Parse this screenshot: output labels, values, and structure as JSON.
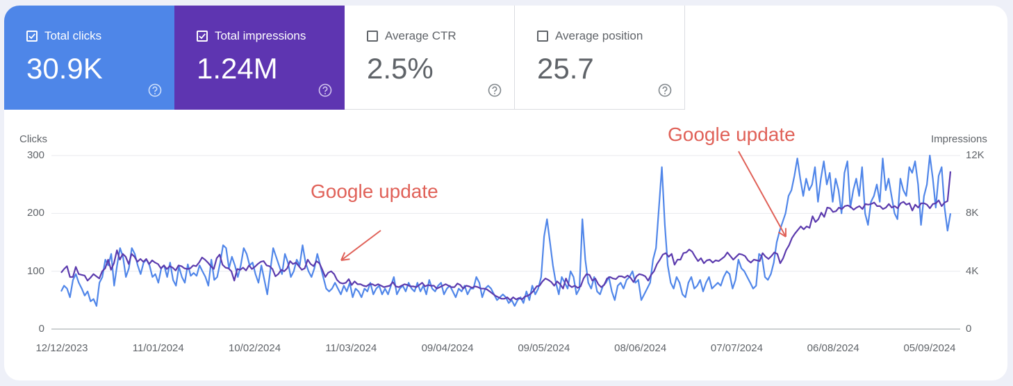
{
  "metrics": [
    {
      "label": "Total clicks",
      "value": "30.9K",
      "checked": true,
      "color": "#4e86e8"
    },
    {
      "label": "Total impressions",
      "value": "1.24M",
      "checked": true,
      "color": "#5e35b1"
    },
    {
      "label": "Average CTR",
      "value": "2.5%",
      "checked": false,
      "color": "#ffffff"
    },
    {
      "label": "Average position",
      "value": "25.7",
      "checked": false,
      "color": "#ffffff"
    }
  ],
  "icons": {
    "checkbox_checked": "check-icon",
    "help": "help-circle-icon",
    "arrow": "arrow-icon"
  },
  "annotations": [
    {
      "text": "Google update"
    },
    {
      "text": "Google update"
    }
  ],
  "chart_data": {
    "type": "line",
    "left_axis_title": "Clicks",
    "right_axis_title": "Impressions",
    "left_ticks": [
      "0",
      "100",
      "200",
      "300"
    ],
    "right_ticks": [
      "0",
      "4K",
      "8K",
      "12K"
    ],
    "ylim_left": [
      0,
      300
    ],
    "ylim_right": [
      0,
      12000
    ],
    "x_tick_labels": [
      "12/12/2023",
      "11/01/2024",
      "10/02/2024",
      "11/03/2024",
      "09/04/2024",
      "09/05/2024",
      "08/06/2024",
      "07/07/2024",
      "06/08/2024",
      "05/09/2024"
    ],
    "grid": true,
    "series": [
      {
        "name": "Total clicks",
        "axis": "left",
        "color": "#5086e9",
        "values": [
          65,
          75,
          70,
          55,
          85,
          95,
          80,
          70,
          58,
          65,
          48,
          52,
          40,
          80,
          90,
          120,
          110,
          130,
          75,
          110,
          140,
          125,
          90,
          105,
          140,
          130,
          110,
          95,
          115,
          120,
          110,
          90,
          95,
          80,
          105,
          110,
          90,
          115,
          85,
          75,
          108,
          90,
          80,
          112,
          92,
          97,
          92,
          110,
          100,
          90,
          75,
          120,
          85,
          90,
          115,
          145,
          140,
          105,
          125,
          110,
          90,
          110,
          140,
          130,
          110,
          115,
          95,
          80,
          110,
          85,
          60,
          100,
          140,
          125,
          110,
          95,
          130,
          115,
          90,
          100,
          120,
          110,
          145,
          115,
          100,
          90,
          105,
          130,
          110,
          90,
          70,
          65,
          70,
          80,
          70,
          60,
          75,
          65,
          80,
          55,
          70,
          65,
          55,
          70,
          65,
          80,
          60,
          70,
          75,
          60,
          70,
          60,
          75,
          90,
          60,
          70,
          75,
          65,
          80,
          70,
          65,
          80,
          65,
          75,
          60,
          85,
          70,
          65,
          75,
          80,
          60,
          70,
          75,
          65,
          55,
          70,
          65,
          75,
          60,
          70,
          70,
          90,
          80,
          55,
          70,
          75,
          70,
          60,
          50,
          55,
          60,
          55,
          45,
          50,
          40,
          50,
          55,
          45,
          65,
          50,
          75,
          60,
          70,
          90,
          160,
          190,
          150,
          110,
          80,
          60,
          90,
          80,
          70,
          100,
          90,
          60,
          70,
          190,
          120,
          80,
          70,
          90,
          65,
          60,
          75,
          80,
          90,
          65,
          50,
          75,
          80,
          70,
          85,
          90,
          100,
          80,
          85,
          50,
          60,
          70,
          80,
          120,
          140,
          210,
          280,
          180,
          110,
          80,
          70,
          90,
          80,
          60,
          55,
          80,
          90,
          70,
          75,
          85,
          65,
          80,
          90,
          70,
          75,
          80,
          75,
          90,
          100,
          95,
          70,
          85,
          120,
          105,
          100,
          90,
          80,
          70,
          75,
          130,
          125,
          90,
          85,
          95,
          115,
          150,
          170,
          185,
          200,
          230,
          240,
          265,
          295,
          260,
          230,
          260,
          240,
          250,
          280,
          220,
          260,
          290,
          250,
          270,
          220,
          260,
          240,
          200,
          270,
          290,
          210,
          240,
          260,
          230,
          280,
          200,
          180,
          220,
          230,
          250,
          220,
          295,
          240,
          260,
          230,
          200,
          190,
          260,
          240,
          230,
          280,
          270,
          290,
          250,
          180,
          230,
          250,
          300,
          260,
          210,
          265,
          280,
          210,
          170,
          200
        ],
        "values_note_skip": "do not render"
      },
      {
        "name": "Total impressions",
        "axis": "right",
        "color": "#5b3aad",
        "values": [
          3900,
          4150,
          4350,
          3600,
          3600,
          4300,
          3800,
          3750,
          3700,
          3350,
          3550,
          3800,
          3650,
          3500,
          4000,
          4200,
          4800,
          4100,
          4550,
          5450,
          4800,
          5200,
          5000,
          4500,
          5200,
          5000,
          4650,
          4850,
          4650,
          4850,
          4500,
          4750,
          4600,
          4500,
          4200,
          4400,
          4150,
          4350,
          4250,
          4050,
          4400,
          4350,
          4200,
          4150,
          4200,
          4400,
          4350,
          4600,
          4950,
          4800,
          4600,
          4350,
          4150,
          4900,
          5150,
          4450,
          4250,
          4200,
          4000,
          3350,
          4150,
          4100,
          4250,
          4050,
          4400,
          4150,
          4300,
          4500,
          4650,
          4700,
          4400,
          4350,
          4150,
          3650,
          3800,
          4100,
          4000,
          4200,
          4700,
          4500,
          4600,
          4350,
          4100,
          4200,
          4800,
          4500,
          4350,
          4700,
          4550,
          4100,
          3600,
          3900,
          4000,
          3800,
          3400,
          3200,
          3150,
          3200,
          3450,
          3050,
          3300,
          3100,
          3100,
          3000,
          2950,
          3100,
          3100,
          3000,
          3100,
          3000,
          2900,
          2950,
          3000,
          3250,
          2950,
          2900,
          3000,
          3100,
          3050,
          2950,
          2950,
          2900,
          3050,
          3200,
          2950,
          3050,
          3000,
          3000,
          2800,
          2900,
          3000,
          3100,
          3000,
          2900,
          2900,
          3150,
          3050,
          2800,
          3000,
          2950,
          2850,
          2950,
          2900,
          2800,
          2800,
          2750,
          2600,
          2450,
          2300,
          2200,
          2100,
          2100,
          2200,
          2000,
          2200,
          2050,
          2150,
          2050,
          2250,
          2300,
          2450,
          2650,
          2950,
          3000,
          3300,
          3500,
          3400,
          3250,
          3000,
          3300,
          3100,
          2800,
          3500,
          3050,
          2900,
          3000,
          2850,
          2950,
          3500,
          3800,
          3750,
          3350,
          3500,
          3100,
          2900,
          3050,
          3500,
          3600,
          3500,
          3450,
          3650,
          3650,
          3550,
          3700,
          3550,
          3250,
          3650,
          3800,
          3750,
          3650,
          3350,
          3750,
          4000,
          4500,
          4800,
          5150,
          5250,
          5000,
          5200,
          4450,
          4800,
          4800,
          5250,
          5300,
          5500,
          5350,
          5000,
          4700,
          4900,
          4550,
          4750,
          4800,
          4600,
          4750,
          4700,
          4850,
          5000,
          5300,
          5050,
          4800,
          5000,
          5200,
          5150,
          5050,
          4750,
          4600,
          4800,
          4750,
          4700,
          5250,
          5000,
          4850,
          5050,
          5300,
          5200,
          4550,
          4900,
          5450,
          5800,
          6300,
          6600,
          6850,
          7100,
          6900,
          7100,
          7000,
          7800,
          7400,
          7600,
          8050,
          7750,
          8400,
          8350,
          8100,
          8150,
          8400,
          8300,
          8500,
          8550,
          8450,
          8250,
          8400,
          8500,
          8300,
          8650,
          8600,
          8650,
          8750,
          8500,
          8500,
          8300,
          8400,
          8650,
          8400,
          8500,
          8350,
          8700,
          8800,
          8600,
          8700,
          8200,
          8600,
          8400,
          8700,
          8700,
          8600,
          8350,
          8650,
          8700,
          8900,
          8500,
          8750,
          8850,
          10900
        ]
      }
    ]
  }
}
